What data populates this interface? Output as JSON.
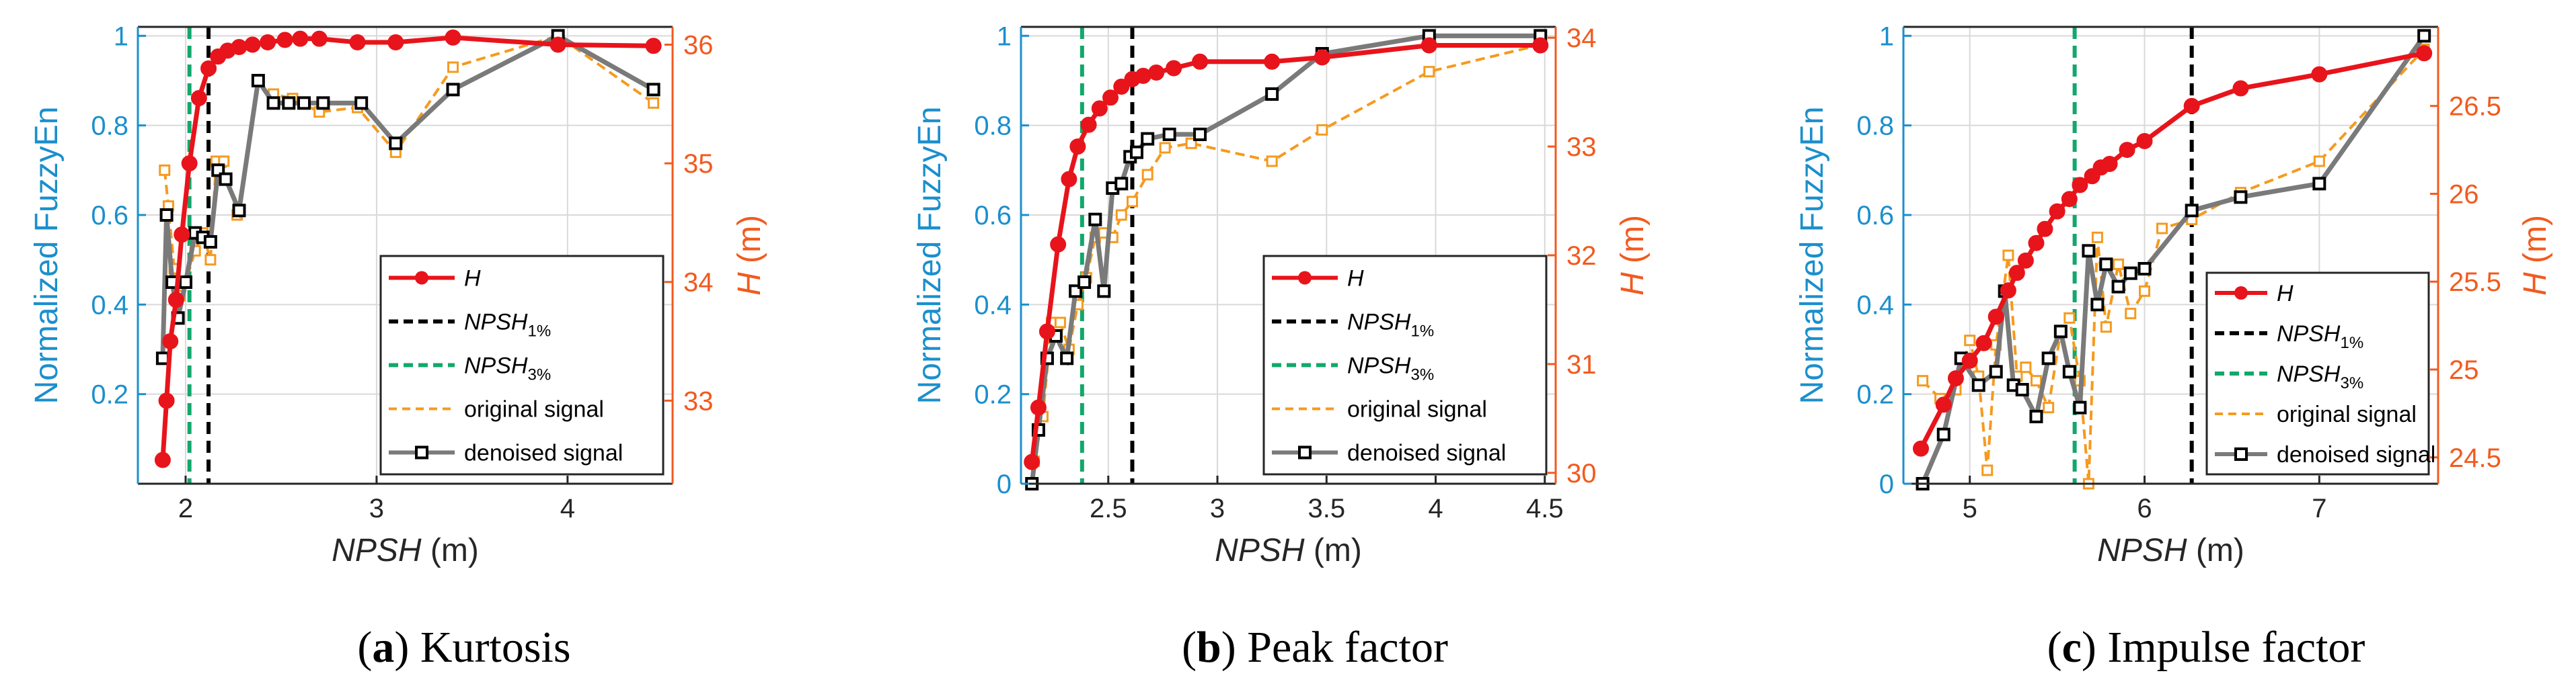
{
  "colors": {
    "left_axis": "#1B8FCD",
    "right_axis": "#F25A1E",
    "H": "#E8141B",
    "npsh1": "#000000",
    "npsh3": "#12A86B",
    "original": "#F59A1E",
    "denoised": "#7A7A7A",
    "grid": "#D9D9D9"
  },
  "chart_data": [
    {
      "type": "line",
      "caption_letter": "a",
      "caption_text": ") Kurtosis",
      "caption_paren": "(",
      "xlabel_italic": "NPSH",
      "xlabel_unit": " (m)",
      "ylabel_left": "Normalized FuzzyEn",
      "ylabel_right_italic": "H",
      "ylabel_right_unit": " (m)",
      "xlim": [
        1.75,
        4.55
      ],
      "ylim_left": [
        0,
        1.02
      ],
      "ylim_right": [
        32.3,
        36.15
      ],
      "xticks": [
        2,
        3,
        4
      ],
      "xtick_labels": [
        "2",
        "3",
        "4"
      ],
      "yticks_left": [
        0.2,
        0.4,
        0.6,
        0.8,
        1
      ],
      "ytick_labels_left": [
        "0.2",
        "0.4",
        "0.6",
        "0.8",
        "1"
      ],
      "yticks_right": [
        33,
        34,
        35,
        36
      ],
      "ytick_labels_right": [
        "33",
        "34",
        "35",
        "36"
      ],
      "legend_style": "italic",
      "legend": [
        {
          "key": "H",
          "label": "H",
          "sub": ""
        },
        {
          "key": "npsh1",
          "label": "NPSH",
          "sub": "1%"
        },
        {
          "key": "npsh3",
          "label": "NPSH",
          "sub": "3%"
        },
        {
          "key": "original",
          "label": "original signal",
          "sub": ""
        },
        {
          "key": "denoised",
          "label": "denoised signal",
          "sub": ""
        }
      ],
      "npsh1_x": 2.12,
      "npsh3_x": 2.02,
      "H": {
        "x": [
          1.88,
          1.9,
          1.92,
          1.95,
          1.98,
          2.02,
          2.07,
          2.12,
          2.17,
          2.22,
          2.28,
          2.35,
          2.43,
          2.52,
          2.6,
          2.7,
          2.9,
          3.1,
          3.4,
          3.95,
          4.45
        ],
        "y": [
          32.5,
          33.0,
          33.5,
          33.85,
          34.4,
          35.0,
          35.55,
          35.8,
          35.9,
          35.95,
          35.98,
          36.0,
          36.02,
          36.04,
          36.05,
          36.05,
          36.02,
          36.02,
          36.06,
          36.0,
          35.99
        ]
      },
      "original": {
        "x": [
          1.89,
          1.91,
          1.94,
          1.97,
          2.0,
          2.05,
          2.09,
          2.13,
          2.16,
          2.2,
          2.27,
          2.38,
          2.46,
          2.56,
          2.7,
          2.9,
          3.1,
          3.4,
          3.95,
          4.45
        ],
        "y": [
          0.7,
          0.62,
          0.48,
          0.42,
          0.45,
          0.52,
          0.56,
          0.5,
          0.72,
          0.72,
          0.6,
          0.9,
          0.87,
          0.86,
          0.83,
          0.84,
          0.74,
          0.93,
          1.0,
          0.85
        ]
      },
      "denoised": {
        "x": [
          1.88,
          1.9,
          1.93,
          1.96,
          2.0,
          2.05,
          2.09,
          2.13,
          2.17,
          2.21,
          2.28,
          2.38,
          2.46,
          2.54,
          2.62,
          2.72,
          2.92,
          3.1,
          3.4,
          3.95,
          4.45
        ],
        "y": [
          0.28,
          0.6,
          0.45,
          0.37,
          0.45,
          0.56,
          0.55,
          0.54,
          0.7,
          0.68,
          0.61,
          0.9,
          0.85,
          0.85,
          0.85,
          0.85,
          0.85,
          0.76,
          0.88,
          1.0,
          0.88
        ]
      }
    },
    {
      "type": "line",
      "caption_letter": "b",
      "caption_text": ") Peak factor",
      "caption_paren": "(",
      "xlabel_italic": "NPSH",
      "xlabel_unit": " (m)",
      "ylabel_left": "Normalized FuzzyEn",
      "ylabel_right_italic": "H",
      "ylabel_right_unit": " (m)",
      "xlim": [
        2.1,
        4.55
      ],
      "ylim_left": [
        0,
        1.02
      ],
      "ylim_right": [
        29.9,
        34.1
      ],
      "xticks": [
        2.5,
        3,
        3.5,
        4,
        4.5
      ],
      "xtick_labels": [
        "2.5",
        "3",
        "3.5",
        "4",
        "4.5"
      ],
      "yticks_left": [
        0,
        0.2,
        0.4,
        0.6,
        0.8,
        1
      ],
      "ytick_labels_left": [
        "0",
        "0.2",
        "0.4",
        "0.6",
        "0.8",
        "1"
      ],
      "yticks_right": [
        30,
        31,
        32,
        33,
        34
      ],
      "ytick_labels_right": [
        "30",
        "31",
        "32",
        "33",
        "34"
      ],
      "legend_style": "italic",
      "legend": [
        {
          "key": "H",
          "label": "H",
          "sub": ""
        },
        {
          "key": "npsh1",
          "label": "NPSH",
          "sub": "1%"
        },
        {
          "key": "npsh3",
          "label": "NPSH",
          "sub": "3%"
        },
        {
          "key": "original",
          "label": "original signal",
          "sub": ""
        },
        {
          "key": "denoised",
          "label": "denoised signal",
          "sub": ""
        }
      ],
      "npsh1_x": 2.61,
      "npsh3_x": 2.38,
      "H": {
        "x": [
          2.15,
          2.18,
          2.22,
          2.27,
          2.32,
          2.36,
          2.41,
          2.46,
          2.51,
          2.56,
          2.61,
          2.66,
          2.72,
          2.8,
          2.92,
          3.25,
          3.48,
          3.97,
          4.48
        ],
        "y": [
          30.1,
          30.6,
          31.3,
          32.1,
          32.7,
          33.0,
          33.2,
          33.35,
          33.45,
          33.55,
          33.62,
          33.65,
          33.68,
          33.72,
          33.78,
          33.78,
          33.82,
          33.93,
          33.93
        ]
      },
      "original": {
        "x": [
          2.16,
          2.2,
          2.24,
          2.28,
          2.32,
          2.36,
          2.4,
          2.44,
          2.48,
          2.52,
          2.56,
          2.61,
          2.68,
          2.76,
          2.88,
          3.25,
          3.48,
          3.97,
          4.48
        ],
        "y": [
          0.05,
          0.15,
          0.36,
          0.36,
          0.3,
          0.4,
          0.46,
          0.55,
          0.56,
          0.55,
          0.6,
          0.63,
          0.69,
          0.75,
          0.76,
          0.72,
          0.79,
          0.92,
          0.98
        ]
      },
      "denoised": {
        "x": [
          2.15,
          2.18,
          2.22,
          2.26,
          2.31,
          2.35,
          2.39,
          2.44,
          2.48,
          2.52,
          2.56,
          2.6,
          2.63,
          2.68,
          2.78,
          2.92,
          3.25,
          3.48,
          3.97,
          4.48
        ],
        "y": [
          0.0,
          0.12,
          0.28,
          0.33,
          0.28,
          0.43,
          0.45,
          0.59,
          0.43,
          0.66,
          0.67,
          0.73,
          0.74,
          0.77,
          0.78,
          0.78,
          0.87,
          0.96,
          1.0,
          1.0
        ]
      }
    },
    {
      "type": "line",
      "caption_letter": "c",
      "caption_text": ") Impulse factor",
      "caption_paren": "(",
      "xlabel_italic": "NPSH",
      "xlabel_unit": " (m)",
      "ylabel_left": "Normalized FuzzyEn",
      "ylabel_right_italic": "H",
      "ylabel_right_unit": " (m)",
      "xlim": [
        4.62,
        7.68
      ],
      "ylim_left": [
        0,
        1.02
      ],
      "ylim_right": [
        24.35,
        26.95
      ],
      "xticks": [
        5,
        6,
        7
      ],
      "xtick_labels": [
        "5",
        "6",
        "7"
      ],
      "yticks_left": [
        0,
        0.2,
        0.4,
        0.6,
        0.8,
        1
      ],
      "ytick_labels_left": [
        "0",
        "0.2",
        "0.4",
        "0.6",
        "0.8",
        "1"
      ],
      "yticks_right": [
        24.5,
        25,
        25.5,
        26,
        26.5
      ],
      "ytick_labels_right": [
        "24.5",
        "25",
        "25.5",
        "26",
        "26.5"
      ],
      "legend_style": "normal",
      "legend": [
        {
          "key": "H",
          "label": "H",
          "sub": ""
        },
        {
          "key": "npsh1",
          "label": "NPSH",
          "sub": "1%"
        },
        {
          "key": "npsh3",
          "label": "NPSH",
          "sub": "3%"
        },
        {
          "key": "original",
          "label": "original signal",
          "sub": ""
        },
        {
          "key": "denoised",
          "label": "denoised signal",
          "sub": ""
        }
      ],
      "npsh1_x": 6.27,
      "npsh3_x": 5.6,
      "H": {
        "x": [
          4.72,
          4.85,
          4.92,
          5.0,
          5.08,
          5.15,
          5.22,
          5.27,
          5.32,
          5.38,
          5.43,
          5.5,
          5.57,
          5.63,
          5.7,
          5.75,
          5.8,
          5.9,
          6.0,
          6.27,
          6.55,
          7.0,
          7.6
        ],
        "y": [
          24.55,
          24.8,
          24.95,
          25.05,
          25.15,
          25.3,
          25.45,
          25.55,
          25.62,
          25.72,
          25.8,
          25.9,
          25.97,
          26.05,
          26.1,
          26.15,
          26.17,
          26.25,
          26.3,
          26.5,
          26.6,
          26.68,
          26.8
        ]
      },
      "original": {
        "x": [
          4.73,
          4.83,
          4.92,
          5.0,
          5.05,
          5.1,
          5.15,
          5.22,
          5.27,
          5.32,
          5.38,
          5.45,
          5.52,
          5.57,
          5.63,
          5.68,
          5.73,
          5.78,
          5.85,
          5.92,
          6.0,
          6.1,
          6.27,
          6.55,
          7.0,
          7.6
        ],
        "y": [
          0.23,
          0.19,
          0.21,
          0.32,
          0.24,
          0.03,
          0.31,
          0.51,
          0.24,
          0.26,
          0.23,
          0.17,
          0.34,
          0.37,
          0.23,
          0.0,
          0.55,
          0.35,
          0.49,
          0.38,
          0.43,
          0.57,
          0.59,
          0.65,
          0.72,
          0.97
        ]
      },
      "denoised": {
        "x": [
          4.73,
          4.85,
          4.95,
          5.05,
          5.15,
          5.2,
          5.25,
          5.3,
          5.38,
          5.45,
          5.52,
          5.57,
          5.63,
          5.68,
          5.73,
          5.78,
          5.85,
          5.92,
          6.0,
          6.27,
          6.55,
          7.0,
          7.6
        ],
        "y": [
          0.0,
          0.11,
          0.28,
          0.22,
          0.25,
          0.43,
          0.22,
          0.21,
          0.15,
          0.28,
          0.34,
          0.25,
          0.17,
          0.52,
          0.4,
          0.49,
          0.44,
          0.47,
          0.48,
          0.61,
          0.64,
          0.67,
          1.0
        ]
      }
    }
  ]
}
